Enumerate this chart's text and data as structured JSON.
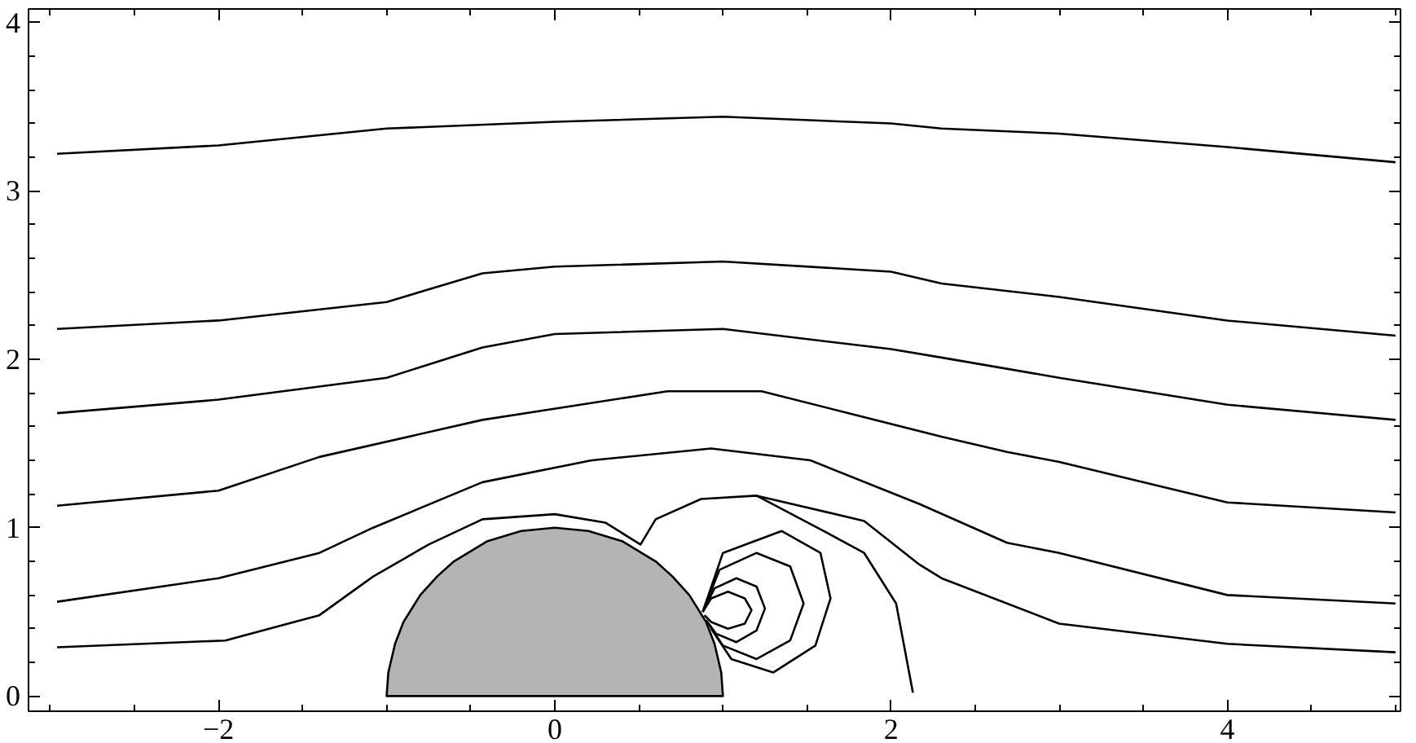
{
  "chart_data": {
    "type": "line",
    "xlim": [
      -3.13,
      5.03
    ],
    "ylim": [
      -0.09,
      4.08
    ],
    "xticks": [
      {
        "value": -3,
        "label": null
      },
      {
        "value": -2.5,
        "label": null
      },
      -2,
      {
        "value": -1.5,
        "label": null
      },
      {
        "value": -1,
        "label": null
      },
      {
        "value": -0.5,
        "label": null
      },
      0,
      {
        "value": 0.5,
        "label": null
      },
      {
        "value": 1,
        "label": null
      },
      {
        "value": 1.5,
        "label": null
      },
      2,
      {
        "value": 2.5,
        "label": null
      },
      {
        "value": 3,
        "label": null
      },
      {
        "value": 3.5,
        "label": null
      },
      4,
      {
        "value": 4.5,
        "label": null
      },
      {
        "value": 5,
        "label": null
      }
    ],
    "yticks": [
      0,
      {
        "value": 0.2,
        "label": null
      },
      {
        "value": 0.4,
        "label": null
      },
      {
        "value": 0.6,
        "label": null
      },
      {
        "value": 0.8,
        "label": null
      },
      1,
      {
        "value": 1.2,
        "label": null
      },
      {
        "value": 1.4,
        "label": null
      },
      {
        "value": 1.6,
        "label": null
      },
      {
        "value": 1.8,
        "label": null
      },
      2,
      {
        "value": 2.2,
        "label": null
      },
      {
        "value": 2.4,
        "label": null
      },
      {
        "value": 2.6,
        "label": null
      },
      {
        "value": 2.8,
        "label": null
      },
      3,
      {
        "value": 3.2,
        "label": null
      },
      {
        "value": 3.4,
        "label": null
      },
      {
        "value": 3.6,
        "label": null
      },
      {
        "value": 3.8,
        "label": null
      },
      4
    ],
    "grid": false,
    "marker": "none",
    "line_style": "solid",
    "series": [
      {
        "type": "area",
        "color": "#b4b4b4",
        "x": [
          -1,
          -0.99,
          -0.95,
          -0.9,
          -0.8,
          -0.7,
          -0.6,
          -0.4,
          -0.2,
          0,
          0.2,
          0.4,
          0.6,
          0.7,
          0.8,
          0.9,
          0.95,
          0.99,
          1
        ],
        "values": [
          0,
          0.14,
          0.31,
          0.44,
          0.6,
          0.71,
          0.8,
          0.92,
          0.98,
          1.0,
          0.98,
          0.92,
          0.8,
          0.71,
          0.6,
          0.44,
          0.31,
          0.14,
          0
        ]
      },
      {
        "color": "#000000",
        "x": [
          -2.96,
          -2,
          -1,
          0,
          1,
          2,
          2.3,
          3,
          4,
          5
        ],
        "values": [
          3.22,
          3.27,
          3.37,
          3.41,
          3.44,
          3.4,
          3.37,
          3.34,
          3.26,
          3.17
        ]
      },
      {
        "color": "#000000",
        "x": [
          -2.96,
          -2,
          -1,
          -0.43,
          0,
          1,
          2,
          2.3,
          3,
          4,
          5
        ],
        "values": [
          2.18,
          2.23,
          2.34,
          2.51,
          2.55,
          2.58,
          2.52,
          2.45,
          2.37,
          2.23,
          2.14
        ]
      },
      {
        "color": "#000000",
        "x": [
          -2.96,
          -2,
          -1,
          -0.43,
          0,
          1,
          2,
          2.3,
          3,
          4,
          5
        ],
        "values": [
          1.68,
          1.76,
          1.89,
          2.07,
          2.15,
          2.18,
          2.06,
          2.01,
          1.89,
          1.73,
          1.64
        ]
      },
      {
        "color": "#000000",
        "x": [
          -2.96,
          -2,
          -1.4,
          -0.43,
          0.67,
          1.23,
          2.3,
          2.69,
          3,
          4,
          5
        ],
        "values": [
          1.13,
          1.22,
          1.42,
          1.64,
          1.81,
          1.81,
          1.54,
          1.45,
          1.39,
          1.15,
          1.09
        ]
      },
      {
        "color": "#000000",
        "x": [
          -2.96,
          -2,
          -1.4,
          -1.08,
          -0.43,
          0.22,
          0.93,
          1.52,
          2.17,
          2.69,
          3,
          4,
          5
        ],
        "values": [
          0.56,
          0.7,
          0.85,
          1.0,
          1.27,
          1.4,
          1.47,
          1.4,
          1.14,
          0.91,
          0.85,
          0.6,
          0.55
        ]
      },
      {
        "color": "#000000",
        "x": [
          -2.96,
          -1.96,
          -1.4,
          -1.08,
          -0.75,
          -0.43,
          0,
          0.3,
          0.51,
          0.6,
          0.87,
          1.2,
          1.84,
          2.17,
          2.3,
          3,
          4,
          5
        ],
        "values": [
          0.29,
          0.33,
          0.48,
          0.71,
          0.9,
          1.05,
          1.08,
          1.03,
          0.9,
          1.05,
          1.17,
          1.19,
          1.04,
          0.78,
          0.7,
          0.43,
          0.31,
          0.26
        ]
      },
      {
        "color": "#000000",
        "x": [
          1.2,
          1.6,
          1.84,
          2.03,
          2.13
        ],
        "values": [
          1.19,
          0.98,
          0.85,
          0.55,
          0.02
        ]
      },
      {
        "color": "#000000",
        "x": [
          0.88,
          0.93,
          1.03,
          1.13,
          1.17,
          1.13,
          1.03,
          0.93,
          0.89
        ],
        "values": [
          0.5,
          0.58,
          0.62,
          0.58,
          0.51,
          0.43,
          0.4,
          0.44,
          0.48
        ]
      },
      {
        "color": "#000000",
        "x": [
          0.88,
          0.95,
          1.08,
          1.2,
          1.25,
          1.2,
          1.08,
          0.96,
          0.9
        ],
        "values": [
          0.5,
          0.64,
          0.7,
          0.65,
          0.52,
          0.39,
          0.32,
          0.37,
          0.45
        ]
      },
      {
        "color": "#000000",
        "x": [
          0.88,
          0.98,
          1.2,
          1.4,
          1.48,
          1.4,
          1.2,
          1.0,
          0.92
        ],
        "values": [
          0.5,
          0.75,
          0.85,
          0.77,
          0.55,
          0.33,
          0.22,
          0.3,
          0.42
        ]
      },
      {
        "color": "#000000",
        "x": [
          0.88,
          1.0,
          1.35,
          1.58,
          1.64,
          1.55,
          1.3,
          1.05,
          0.93
        ],
        "values": [
          0.5,
          0.85,
          0.98,
          0.85,
          0.58,
          0.3,
          0.14,
          0.22,
          0.4
        ]
      }
    ]
  }
}
